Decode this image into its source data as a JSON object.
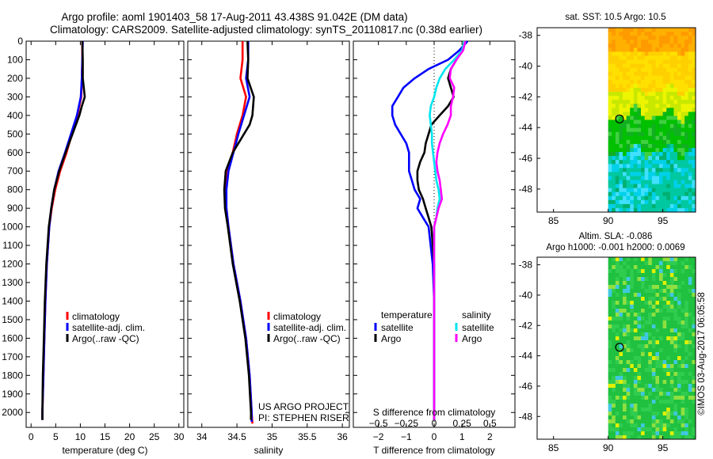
{
  "header": {
    "title_line1": "Argo profile: aoml 1901403_58 17-Aug-2011 43.438S 91.042E (DM data)",
    "title_line2": "Climatology: CARS2009. Satellite-adjusted climatology: synTS_20110817.nc (0.38d earlier)"
  },
  "footer": {
    "project": "US ARGO PROJECT",
    "pi": "PI: STEPHEN RISER",
    "credit": "©IMOS 03-Aug-2017 06:05:58"
  },
  "colors": {
    "climatology": "#ff0000",
    "satellite_adj": "#0000ff",
    "argo": "#000000",
    "sal_satellite": "#00e5ee",
    "sal_argo": "#ff00ff"
  },
  "chart_data": [
    {
      "type": "line",
      "id": "temperature",
      "xlabel": "temperature (deg C)",
      "xlim": [
        -1,
        31
      ],
      "xticks": [
        0,
        5,
        10,
        15,
        20,
        25,
        30
      ],
      "xtick_labels": [
        "0",
        "5",
        "10",
        "15",
        "20",
        "25",
        "30"
      ],
      "ylim": [
        0,
        2080
      ],
      "yticks": [
        0,
        100,
        200,
        300,
        400,
        500,
        600,
        700,
        800,
        900,
        1000,
        1100,
        1200,
        1300,
        1400,
        1500,
        1600,
        1700,
        1800,
        1900,
        2000
      ],
      "ytick_labels": [
        "0",
        "100",
        "200",
        "300",
        "400",
        "500",
        "600",
        "700",
        "800",
        "900",
        "1000",
        "1100",
        "1200",
        "1300",
        "1400",
        "1500",
        "1600",
        "1700",
        "1800",
        "1900",
        "2000"
      ],
      "legend": [
        "climatology",
        "satellite-adj. clim.",
        "Argo(..raw -QC)"
      ],
      "series": [
        {
          "name": "climatology",
          "color": "#ff0000",
          "depth": [
            0,
            100,
            200,
            300,
            400,
            500,
            600,
            700,
            800,
            900,
            1000,
            1200,
            1400,
            1600,
            1800,
            2000,
            2040
          ],
          "values": [
            10.4,
            10.4,
            10.3,
            10.2,
            9.4,
            8.3,
            7.2,
            5.9,
            4.9,
            4.2,
            3.7,
            3.2,
            2.9,
            2.7,
            2.5,
            2.3,
            2.3
          ]
        },
        {
          "name": "satellite-adj. clim.",
          "color": "#0000ff",
          "depth": [
            0,
            100,
            200,
            300,
            400,
            500,
            600,
            700,
            800,
            900,
            1000,
            1200,
            1400,
            1600,
            1800,
            2000,
            2040
          ],
          "values": [
            10.5,
            10.4,
            10.3,
            10.1,
            9.3,
            8.1,
            6.9,
            5.6,
            4.7,
            4.1,
            3.7,
            3.2,
            2.9,
            2.7,
            2.5,
            2.3,
            2.3
          ]
        },
        {
          "name": "Argo(..raw -QC)",
          "color": "#000000",
          "depth": [
            0,
            100,
            200,
            300,
            350,
            400,
            500,
            600,
            700,
            800,
            900,
            1000,
            1200,
            1400,
            1600,
            1800,
            2000,
            2040
          ],
          "values": [
            10.4,
            10.5,
            10.5,
            10.9,
            10.3,
            9.8,
            8.4,
            7.0,
            5.7,
            4.7,
            4.1,
            3.6,
            3.1,
            2.8,
            2.6,
            2.4,
            2.3,
            2.3
          ]
        }
      ]
    },
    {
      "type": "line",
      "id": "salinity",
      "xlabel": "salinity",
      "xlim": [
        33.8,
        36.1
      ],
      "xticks": [
        34,
        34.5,
        35,
        35.5,
        36
      ],
      "xtick_labels": [
        "34",
        "34.5",
        "35",
        "35.5",
        "36"
      ],
      "ylim": [
        0,
        2080
      ],
      "legend": [
        "climatology",
        "satellite-adj. clim.",
        "Argo(..raw -QC)"
      ],
      "series": [
        {
          "name": "climatology",
          "color": "#ff0000",
          "depth": [
            0,
            100,
            200,
            300,
            400,
            500,
            600,
            700,
            800,
            900,
            1000,
            1200,
            1400,
            1600,
            1800,
            2000,
            2060
          ],
          "values": [
            34.58,
            34.58,
            34.55,
            34.63,
            34.58,
            34.5,
            34.44,
            34.37,
            34.34,
            34.35,
            34.38,
            34.45,
            34.55,
            34.63,
            34.68,
            34.71,
            34.72
          ]
        },
        {
          "name": "satellite-adj. clim.",
          "color": "#0000ff",
          "depth": [
            0,
            100,
            200,
            300,
            400,
            500,
            600,
            700,
            800,
            900,
            1000,
            1200,
            1400,
            1600,
            1800,
            2000,
            2050
          ],
          "values": [
            34.66,
            34.66,
            34.63,
            34.68,
            34.6,
            34.52,
            34.45,
            34.38,
            34.35,
            34.35,
            34.38,
            34.45,
            34.55,
            34.63,
            34.68,
            34.71,
            34.71
          ]
        },
        {
          "name": "Argo(..raw -QC)",
          "color": "#000000",
          "depth": [
            0,
            100,
            200,
            300,
            400,
            450,
            500,
            600,
            700,
            800,
            900,
            1000,
            1200,
            1400,
            1600,
            1800,
            2000,
            2040
          ],
          "values": [
            34.65,
            34.66,
            34.65,
            34.74,
            34.72,
            34.68,
            34.6,
            34.44,
            34.34,
            34.32,
            34.33,
            34.37,
            34.44,
            34.54,
            34.62,
            34.67,
            34.7,
            34.7
          ]
        }
      ]
    },
    {
      "type": "line",
      "id": "difference",
      "xlabel": "T difference from climatology",
      "xlabel_top": "S difference from climatology",
      "xlim": [
        -2.9,
        2.9
      ],
      "xticks": [
        -2,
        -1,
        0,
        1,
        2
      ],
      "xtick_labels": [
        "−2",
        "−1",
        "0",
        "1",
        "2"
      ],
      "s_ticks": [
        -0.5,
        -0.25,
        0,
        0.25,
        0.5
      ],
      "s_tick_labels": [
        "−0.5",
        "−0.25",
        "0",
        "0.25",
        "0.5"
      ],
      "ylim": [
        0,
        2080
      ],
      "legend_temperature_title": "temperature",
      "legend_salinity_title": "salinity",
      "legend_entries": [
        "satellite",
        "Argo",
        "satellite",
        "Argo"
      ],
      "series": [
        {
          "name": "T satellite",
          "color": "#0000ff",
          "depth": [
            0,
            50,
            100,
            150,
            200,
            250,
            300,
            350,
            400,
            450,
            500,
            550,
            600,
            650,
            700,
            750,
            800,
            850,
            900,
            950,
            1000,
            1200,
            1400,
            1600,
            1800,
            2000,
            2040
          ],
          "values": [
            1.2,
            0.9,
            0.5,
            -0.2,
            -0.7,
            -1.1,
            -1.3,
            -1.5,
            -1.5,
            -1.4,
            -1.2,
            -1.0,
            -0.9,
            -0.9,
            -0.9,
            -0.8,
            -0.7,
            -0.5,
            -0.6,
            -0.4,
            -0.2,
            -0.05,
            0.0,
            0.0,
            0.0,
            0.0,
            0.0
          ]
        },
        {
          "name": "T Argo",
          "color": "#000000",
          "depth": [
            0,
            50,
            100,
            150,
            200,
            250,
            300,
            350,
            400,
            450,
            500,
            550,
            600,
            650,
            700,
            750,
            800,
            850,
            900,
            950,
            1000,
            1200,
            1400,
            1600,
            1800,
            2000,
            2040
          ],
          "values": [
            1.1,
            1.0,
            0.8,
            0.6,
            0.5,
            0.6,
            0.7,
            0.5,
            0.2,
            -0.1,
            -0.2,
            -0.3,
            -0.35,
            -0.5,
            -0.6,
            -0.6,
            -0.55,
            -0.4,
            -0.3,
            -0.2,
            -0.1,
            0.0,
            0.0,
            0.0,
            0.0,
            0.0,
            0.0
          ]
        },
        {
          "name": "S satellite",
          "color": "#00e5ee",
          "depth": [
            0,
            50,
            100,
            150,
            200,
            250,
            300,
            350,
            400,
            450,
            500,
            550,
            600,
            650,
            700,
            750,
            800,
            850,
            900,
            950,
            1000,
            1200,
            1400,
            1600,
            1800,
            2000,
            2040
          ],
          "values": [
            0.27,
            0.25,
            0.18,
            0.1,
            0.05,
            0.02,
            0.0,
            -0.03,
            -0.04,
            -0.03,
            -0.02,
            -0.02,
            -0.01,
            0.0,
            0.01,
            0.02,
            0.04,
            0.05,
            0.03,
            0.02,
            0.0,
            0.0,
            0.0,
            0.0,
            0.0,
            0.0,
            0.0
          ]
        },
        {
          "name": "S Argo",
          "color": "#ff00ff",
          "depth": [
            0,
            50,
            100,
            150,
            200,
            250,
            300,
            350,
            400,
            450,
            500,
            550,
            600,
            650,
            700,
            750,
            800,
            850,
            900,
            950,
            1000,
            1200,
            1400,
            1600,
            1800,
            2000,
            2040
          ],
          "values": [
            0.28,
            0.26,
            0.2,
            0.15,
            0.14,
            0.18,
            0.17,
            0.15,
            0.15,
            0.12,
            0.08,
            0.05,
            0.03,
            0.02,
            0.03,
            0.05,
            0.06,
            0.07,
            0.04,
            0.02,
            0.0,
            0.0,
            0.0,
            0.0,
            0.0,
            0.0,
            0.0
          ]
        }
      ]
    },
    {
      "type": "heatmap",
      "id": "sst_map",
      "title": "sat. SST: 10.5  Argo: 10.5",
      "xlim": [
        83.5,
        98
      ],
      "ylim": [
        -49.5,
        -37.5
      ],
      "xticks": [
        85,
        90,
        95
      ],
      "xtick_labels": [
        "85",
        "90",
        "95"
      ],
      "yticks": [
        -38,
        -40,
        -42,
        -44,
        -46,
        -48
      ],
      "ytick_labels": [
        "-38",
        "-40",
        "-42",
        "-44",
        "-46",
        "-48"
      ],
      "data_extent_lon": [
        90,
        98
      ],
      "float_position": {
        "lon": 91.042,
        "lat": -43.438
      }
    },
    {
      "type": "heatmap",
      "id": "sla_map",
      "title": "Altim. SLA: -0.086",
      "subtitle": "Argo h1000: -0.001 h2000: 0.0069",
      "xlim": [
        83.5,
        98
      ],
      "ylim": [
        -49.5,
        -37.5
      ],
      "xticks": [
        85,
        90,
        95
      ],
      "xtick_labels": [
        "85",
        "90",
        "95"
      ],
      "yticks": [
        -38,
        -40,
        -42,
        -44,
        -46,
        -48
      ],
      "ytick_labels": [
        "-38",
        "-40",
        "-42",
        "-44",
        "-46",
        "-48"
      ],
      "data_extent_lon": [
        90,
        98
      ],
      "float_position": {
        "lon": 91.042,
        "lat": -43.438
      }
    }
  ]
}
